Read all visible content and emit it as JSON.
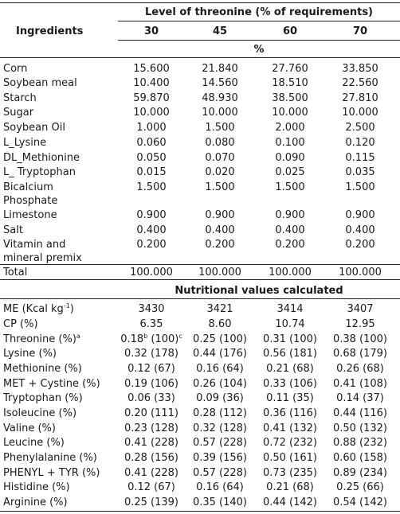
{
  "header": {
    "group_title": "Level of threonine (% of requirements)",
    "ingredients_label": "Ingredients",
    "levels": [
      "30",
      "45",
      "60",
      "70"
    ],
    "unit": "%"
  },
  "ingredients": [
    {
      "name": "Corn",
      "values": [
        "15.600",
        "21.840",
        "27.760",
        "33.850"
      ]
    },
    {
      "name": "Soybean meal",
      "values": [
        "10.400",
        "14.560",
        "18.510",
        "22.560"
      ]
    },
    {
      "name": "Starch",
      "values": [
        "59.870",
        "48.930",
        "38.500",
        "27.810"
      ]
    },
    {
      "name": "Sugar",
      "values": [
        "10.000",
        "10.000",
        "10.000",
        "10.000"
      ]
    },
    {
      "name": "Soybean Oil",
      "values": [
        "1.000",
        "1.500",
        "2.000",
        "2.500"
      ]
    },
    {
      "name": "L_Lysine",
      "values": [
        "0.060",
        "0.080",
        "0.100",
        "0.120"
      ]
    },
    {
      "name": "DL_Methionine",
      "values": [
        "0.050",
        "0.070",
        "0.090",
        "0.115"
      ]
    },
    {
      "name": "L_ Tryptophan",
      "values": [
        "0.015",
        "0.020",
        "0.025",
        "0.035"
      ]
    },
    {
      "name": "Bicalcium",
      "name2": "Phosphate",
      "values": [
        "1.500",
        "1.500",
        "1.500",
        "1.500"
      ]
    },
    {
      "name": "Limestone",
      "values": [
        "0.900",
        "0.900",
        "0.900",
        "0.900"
      ]
    },
    {
      "name": "Salt",
      "values": [
        "0.400",
        "0.400",
        "0.400",
        "0.400"
      ]
    },
    {
      "name": "Vitamin and",
      "name2": "mineral premix",
      "values": [
        "0.200",
        "0.200",
        "0.200",
        "0.200"
      ]
    }
  ],
  "total": {
    "name": "Total",
    "values": [
      "100.000",
      "100.000",
      "100.000",
      "100.000"
    ]
  },
  "nutritional_title": "Nutritional values calculated",
  "nutritional": [
    {
      "name": "ME (Kcal kg",
      "name_sup": "-1",
      "name_end": ")",
      "values": [
        "3430",
        "3421",
        "3414",
        "3407"
      ]
    },
    {
      "name": "CP (%)",
      "values": [
        "6.35",
        "8.60",
        "10.74",
        "12.95"
      ]
    },
    {
      "name": "Threonine (%)",
      "name_sup": "a",
      "values": [
        "0.18",
        "0.25 (100)",
        "0.31 (100)",
        "0.38 (100)"
      ],
      "first_sup": "b",
      "first_mid": " (100)",
      "first_sup2": "c"
    },
    {
      "name": "Lysine (%)",
      "values": [
        "0.32 (178)",
        "0.44 (176)",
        "0.56 (181)",
        "0.68 (179)"
      ]
    },
    {
      "name": "Methionine (%)",
      "values": [
        "0.12 (67)",
        "0.16 (64)",
        "0.21 (68)",
        "0.26 (68)"
      ]
    },
    {
      "name": "MET + Cystine (%)",
      "values": [
        "0.19 (106)",
        "0.26 (104)",
        "0.33 (106)",
        "0.41 (108)"
      ]
    },
    {
      "name": "Tryptophan (%)",
      "values": [
        "0.06 (33)",
        "0.09 (36)",
        "0.11 (35)",
        "0.14 (37)"
      ]
    },
    {
      "name": "Isoleucine (%)",
      "values": [
        "0.20 (111)",
        "0.28 (112)",
        "0.36 (116)",
        "0.44 (116)"
      ]
    },
    {
      "name": "Valine (%)",
      "values": [
        "0.23 (128)",
        "0.32 (128)",
        "0.41 (132)",
        "0.50 (132)"
      ]
    },
    {
      "name": "Leucine (%)",
      "values": [
        "0.41 (228)",
        "0.57 (228)",
        "0.72 (232)",
        "0.88 (232)"
      ]
    },
    {
      "name": "Phenylalanine (%)",
      "values": [
        "0.28 (156)",
        "0.39 (156)",
        "0.50 (161)",
        "0.60 (158)"
      ]
    },
    {
      "name": "PHENYL + TYR (%)",
      "values": [
        "0.41 (228)",
        "0.57 (228)",
        "0.73 (235)",
        "0.89 (234)"
      ]
    },
    {
      "name": "Histidine (%)",
      "values": [
        "0.12 (67)",
        "0.16 (64)",
        "0.21 (68)",
        "0.25 (66)"
      ]
    },
    {
      "name": "Arginine (%)",
      "values": [
        "0.25 (139)",
        "0.35 (140)",
        "0.44 (142)",
        "0.54 (142)"
      ]
    }
  ]
}
